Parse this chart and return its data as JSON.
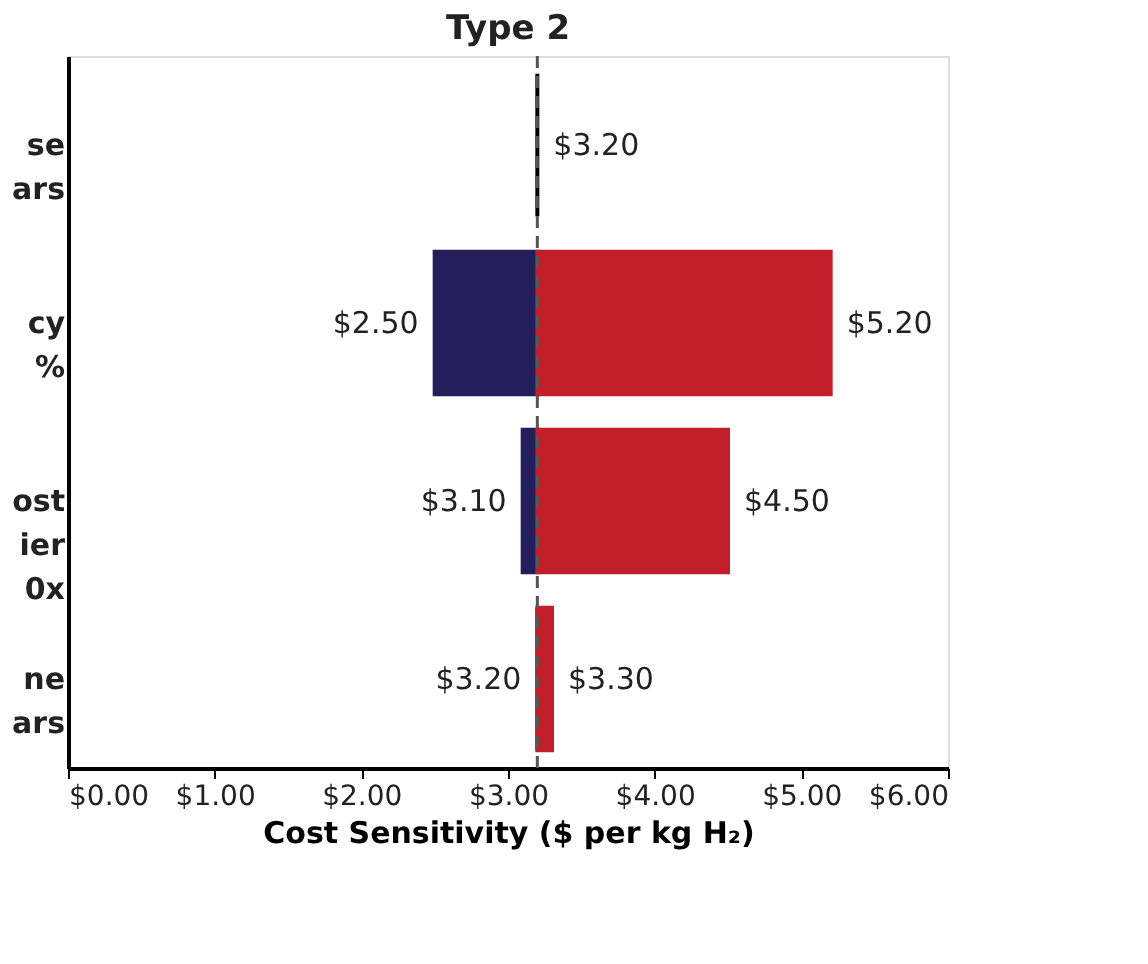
{
  "chart_data": {
    "type": "bar",
    "orientation": "horizontal",
    "title": "Type 2",
    "xlabel": "Cost Sensitivity ($ per kg H₂)",
    "categories": [
      "se\nars",
      "cy\n%",
      "ost\nier\n0x",
      "ne\nars"
    ],
    "series": [
      {
        "color": "#000000",
        "base": [
          3.2,
          null,
          null,
          null
        ],
        "values": [
          0,
          null,
          null,
          null
        ],
        "value_labels": [
          "$3.20",
          null,
          null,
          null
        ]
      },
      {
        "color": "#231f5a",
        "base": [
          null,
          3.2,
          3.2,
          3.2
        ],
        "values": [
          null,
          -0.7,
          -0.1,
          0
        ],
        "value_labels": [
          null,
          "$2.50",
          "$3.10",
          "$3.20"
        ]
      },
      {
        "color": "#c1202a",
        "base": [
          null,
          3.2,
          3.2,
          3.2
        ],
        "values": [
          null,
          2.0,
          1.3,
          0.1
        ],
        "value_labels": [
          null,
          "$5.20",
          "$4.50",
          "$3.30"
        ]
      }
    ],
    "xlim": [
      0,
      6
    ],
    "xticks": [
      {
        "value": 0,
        "label": "$0.00"
      },
      {
        "value": 1,
        "label": "$1.00"
      },
      {
        "value": 2,
        "label": "$2.00"
      },
      {
        "value": 3,
        "label": "$3.00"
      },
      {
        "value": 4,
        "label": "$4.00"
      },
      {
        "value": 5,
        "label": "$5.00"
      },
      {
        "value": 6,
        "label": "$6.00"
      }
    ],
    "ref_lines": [
      {
        "axis": "x",
        "value": 3.2,
        "line_style": "dashed",
        "color": "#555555"
      }
    ],
    "grid": false,
    "legend": false
  }
}
